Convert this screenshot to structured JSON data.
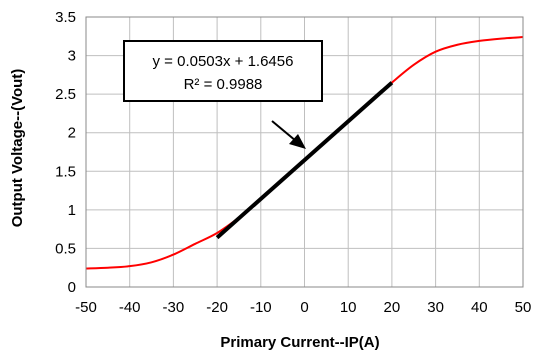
{
  "chart_data": {
    "type": "line",
    "xlabel": "Primary Current--IP(A)",
    "ylabel": "Output Voltage--(Vout)",
    "xlim": [
      -50,
      50
    ],
    "ylim": [
      0,
      3.5
    ],
    "x_ticks": [
      "-50",
      "-40",
      "-30",
      "-20",
      "-10",
      "0",
      "10",
      "20",
      "30",
      "40",
      "50"
    ],
    "y_ticks": [
      "0",
      "0.5",
      "1",
      "1.5",
      "2",
      "2.5",
      "3",
      "3.5"
    ],
    "grid": true,
    "colors": {
      "curve": "#ff0000",
      "fit": "#000000"
    },
    "series": [
      {
        "x": [
          -50,
          -45,
          -40,
          -35,
          -30,
          -25,
          -20,
          -15,
          -10,
          -5,
          0,
          5,
          10,
          15,
          20,
          25,
          30,
          35,
          40,
          45,
          50
        ],
        "y": [
          0.24,
          0.25,
          0.27,
          0.32,
          0.42,
          0.56,
          0.7,
          0.9,
          1.14,
          1.39,
          1.65,
          1.9,
          2.15,
          2.4,
          2.65,
          2.88,
          3.05,
          3.14,
          3.19,
          3.22,
          3.24
        ]
      },
      {
        "x": [
          -20,
          20
        ],
        "y": [
          0.64,
          2.65
        ]
      }
    ],
    "annotations": {
      "equation": "y = 0.0503x + 1.6456",
      "r_squared": "R² = 0.9988"
    }
  }
}
